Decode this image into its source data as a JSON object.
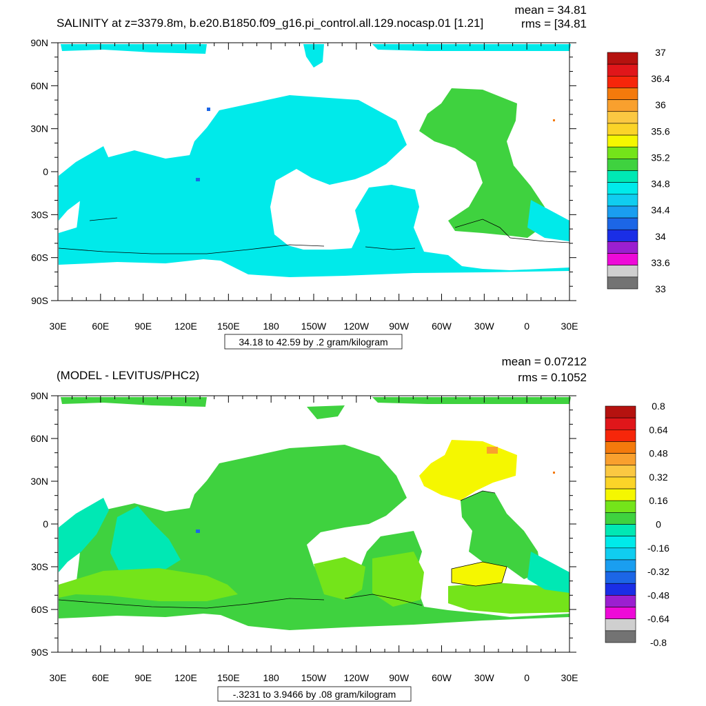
{
  "chart_data": [
    {
      "type": "heatmap",
      "title": "SALINITY at z=3379.8m, b.e20.B1850.f09_g16.pi_control.all.129.nocasp.01 [1.21]",
      "stats": {
        "mean": "mean = 34.81",
        "rms": "rms = [34.81"
      },
      "range_label": "34.18 to 42.59 by .2 gram/kilogram",
      "x_ticks": [
        "30E",
        "60E",
        "90E",
        "120E",
        "150E",
        "180",
        "150W",
        "120W",
        "90W",
        "60W",
        "30W",
        "0",
        "30E"
      ],
      "y_ticks": [
        "90N",
        "60N",
        "30N",
        "0",
        "30S",
        "60S",
        "90S"
      ],
      "colorbar": {
        "labels": [
          "37",
          "36.4",
          "36",
          "35.6",
          "35.2",
          "34.8",
          "34.4",
          "34",
          "33.6",
          "33"
        ],
        "colors": [
          "#b5120f",
          "#e0161a",
          "#f6260a",
          "#f47a0c",
          "#f9a02e",
          "#fbc842",
          "#fbd428",
          "#f5f700",
          "#74e41a",
          "#3fd23f",
          "#00e8b4",
          "#00eaea",
          "#10cdf0",
          "#1a9ef0",
          "#1c66e6",
          "#1a2ee6",
          "#9b1fd0",
          "#ee0ad8",
          "#cfcfcf",
          "#737373"
        ]
      },
      "dominant_field_color": "#00eaea"
    },
    {
      "type": "heatmap",
      "title": "(MODEL - LEVITUS/PHC2)",
      "stats": {
        "mean": "mean = 0.07212",
        "rms": "rms = 0.1052"
      },
      "range_label": "-.3231 to 3.9466 by .08 gram/kilogram",
      "x_ticks": [
        "30E",
        "60E",
        "90E",
        "120E",
        "150E",
        "180",
        "150W",
        "120W",
        "90W",
        "60W",
        "30W",
        "0",
        "30E"
      ],
      "y_ticks": [
        "90N",
        "60N",
        "30N",
        "0",
        "30S",
        "60S",
        "90S"
      ],
      "colorbar": {
        "labels": [
          "0.8",
          "0.64",
          "0.48",
          "0.32",
          "0.16",
          "0",
          "-0.16",
          "-0.32",
          "-0.48",
          "-0.64",
          "-0.8"
        ],
        "colors": [
          "#b5120f",
          "#e0161a",
          "#f6260a",
          "#f47a0c",
          "#f9a02e",
          "#fbc842",
          "#fbd428",
          "#f5f700",
          "#74e41a",
          "#3fd23f",
          "#00e8b4",
          "#00eaea",
          "#10cdf0",
          "#1a9ef0",
          "#1c66e6",
          "#1a2ee6",
          "#9b1fd0",
          "#ee0ad8",
          "#cfcfcf",
          "#737373"
        ]
      },
      "dominant_field_color": "#3fd23f"
    }
  ]
}
